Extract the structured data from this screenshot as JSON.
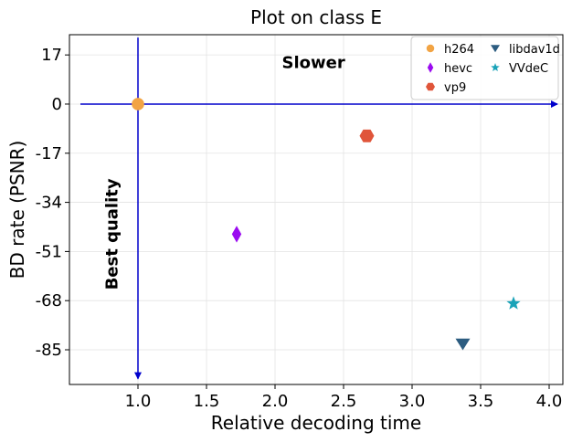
{
  "chart_data": {
    "type": "scatter",
    "title": "Plot on class E",
    "xlabel": "Relative decoding time",
    "ylabel": "BD rate (PSNR)",
    "xlim": [
      0.5,
      4.1
    ],
    "ylim": [
      -97,
      24
    ],
    "xticks": [
      1.0,
      1.5,
      2.0,
      2.5,
      3.0,
      3.5,
      4.0
    ],
    "xtick_labels": [
      "1.0",
      "1.5",
      "2.0",
      "2.5",
      "3.0",
      "3.5",
      "4.0"
    ],
    "yticks": [
      17,
      0,
      -17,
      -34,
      -51,
      -68,
      -85
    ],
    "ytick_labels": [
      "17",
      "0",
      "-17",
      "-34",
      "-51",
      "-68",
      "-85"
    ],
    "grid": true,
    "legend_position": "top-right",
    "series": [
      {
        "name": "h264",
        "color": "#f2a444",
        "marker": "circle",
        "x": 1.0,
        "y": 0
      },
      {
        "name": "hevc",
        "color": "#9b0bf0",
        "marker": "diamond",
        "x": 1.72,
        "y": -45
      },
      {
        "name": "vp9",
        "color": "#e0553a",
        "marker": "hexagon",
        "x": 2.67,
        "y": -11
      },
      {
        "name": "libdav1d",
        "color": "#2c5c80",
        "marker": "triangle-down",
        "x": 3.37,
        "y": -83
      },
      {
        "name": "VVdeC",
        "color": "#1aa3b8",
        "marker": "star",
        "x": 3.74,
        "y": -69
      }
    ],
    "annotations": [
      {
        "text": "Slower",
        "x": 2.05,
        "y": 12.5,
        "rotation": 0
      },
      {
        "text": "Best quality",
        "x": 0.85,
        "y": -45,
        "rotation": -90
      }
    ],
    "arrows": {
      "color": "#0000cc",
      "horizontal": {
        "from_x": 0.58,
        "to_x": 4.06,
        "y": 0
      },
      "vertical": {
        "x": 1.0,
        "from_y": 23,
        "to_y": -95
      }
    }
  }
}
